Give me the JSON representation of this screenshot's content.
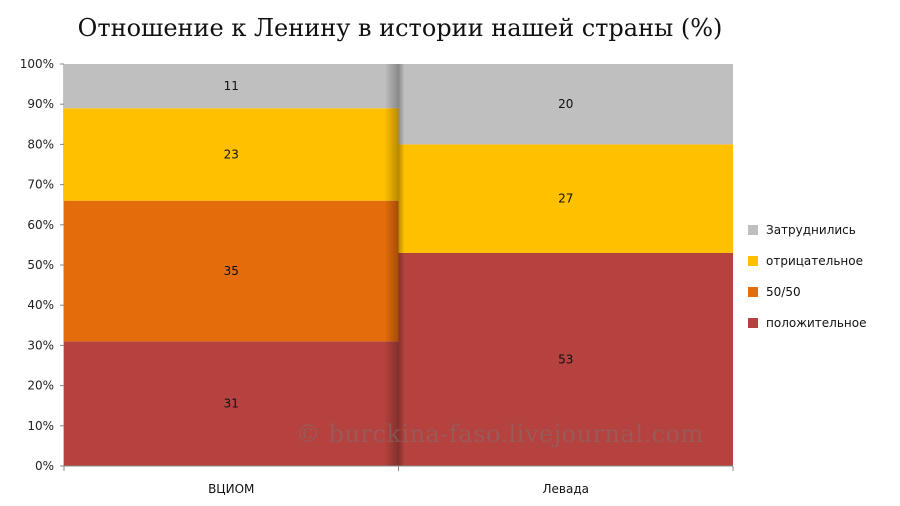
{
  "chart_data": {
    "type": "bar",
    "stacked": true,
    "title": "Отношение к Ленину в истории нашей страны (%)",
    "categories": [
      "ВЦИОМ",
      "Левада"
    ],
    "series": [
      {
        "name": "положительное",
        "values": [
          31,
          53
        ],
        "color": "#b5423e"
      },
      {
        "name": "50/50",
        "values": [
          35,
          0
        ],
        "color": "#e46c0a"
      },
      {
        "name": "отрицательное",
        "values": [
          23,
          27
        ],
        "color": "#ffc000"
      },
      {
        "name": "Затруднились",
        "values": [
          11,
          20
        ],
        "color": "#bfbfbf"
      }
    ],
    "ylim": [
      0,
      100
    ],
    "yticks": [
      "0%",
      "10%",
      "20%",
      "30%",
      "40%",
      "50%",
      "60%",
      "70%",
      "80%",
      "90%",
      "100%"
    ],
    "legend_position": "right",
    "legend_order": [
      "Затруднились",
      "отрицательное",
      "50/50",
      "положительное"
    ]
  },
  "watermark": "© burckina-faso.livejournal.com"
}
